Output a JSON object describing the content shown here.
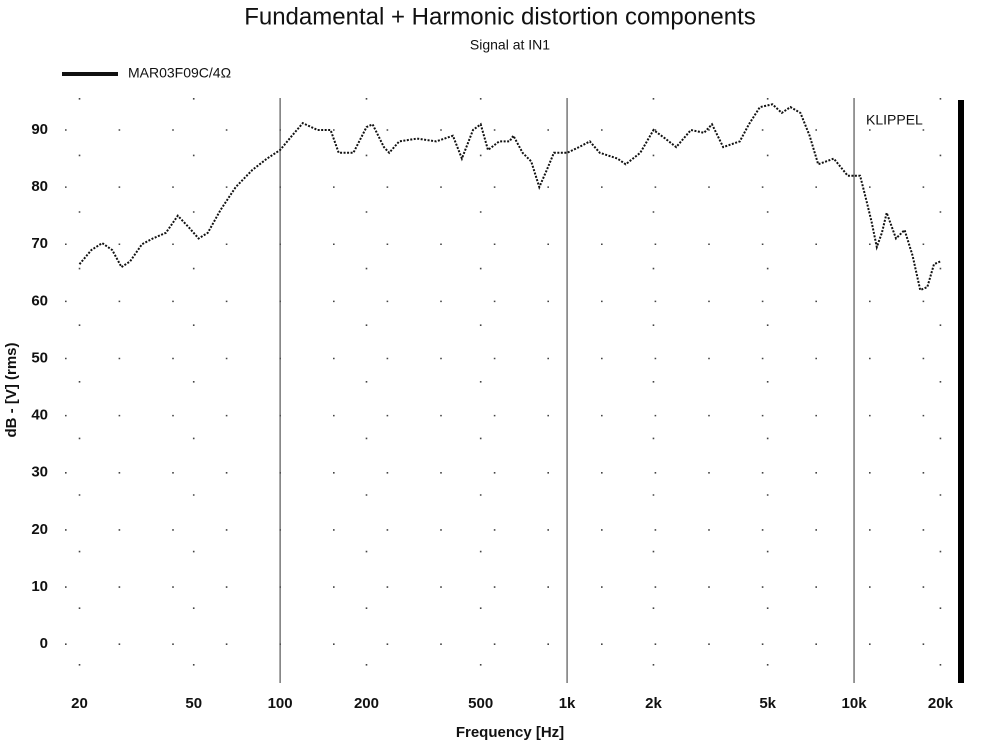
{
  "chart_data": {
    "type": "line",
    "title": "Fundamental + Harmonic distortion components",
    "subtitle": "Signal at IN1",
    "annotation": "KLIPPEL",
    "xlabel": "Frequency [Hz]",
    "ylabel": "dB - [V]  (rms)",
    "xscale": "log",
    "grid": true,
    "legend": "top-left",
    "xlim": [
      17.8,
      23400
    ],
    "ylim": [
      -6.8,
      95.6
    ],
    "xticks": [
      20,
      50,
      100,
      200,
      500,
      {
        "value": 1000,
        "label": "1k"
      },
      {
        "value": 2000,
        "label": "2k"
      },
      {
        "value": 5000,
        "label": "5k"
      },
      {
        "value": 10000,
        "label": "10k"
      },
      {
        "value": 20000,
        "label": "20k"
      }
    ],
    "yticks": [
      0,
      10,
      20,
      30,
      40,
      50,
      60,
      70,
      80,
      90
    ],
    "x": [
      20,
      22,
      24,
      26,
      28,
      30,
      33,
      36,
      40,
      44,
      48,
      52,
      56,
      62,
      70,
      80,
      90,
      100,
      110,
      120,
      135,
      150,
      160,
      180,
      200,
      210,
      230,
      240,
      260,
      300,
      350,
      400,
      430,
      470,
      500,
      530,
      580,
      630,
      650,
      700,
      750,
      800,
      850,
      900,
      1000,
      1100,
      1200,
      1300,
      1500,
      1600,
      1800,
      2000,
      2200,
      2400,
      2700,
      3000,
      3200,
      3500,
      4000,
      4300,
      4700,
      5200,
      5600,
      6000,
      6500,
      7000,
      7500,
      8500,
      9500,
      10000,
      10500,
      11000,
      11500,
      12000,
      12500,
      13000,
      14000,
      15000,
      16000,
      17000,
      18000,
      19000,
      20000
    ],
    "series": [
      {
        "name": "MAR03F09C/4Ω",
        "color": "#111111",
        "values": [
          66.5,
          69,
          70.2,
          69,
          66,
          67,
          70,
          71,
          72,
          75,
          73,
          71,
          72,
          76,
          80,
          83,
          85,
          86.5,
          89,
          91.2,
          90,
          90,
          86,
          86,
          90.5,
          91,
          87,
          86,
          88,
          88.5,
          88,
          89,
          85,
          90,
          91,
          86.5,
          88,
          88,
          89,
          86,
          84.5,
          80,
          83,
          86,
          86,
          87,
          88,
          86,
          85,
          84,
          86,
          90,
          88.5,
          87,
          90,
          89.5,
          91,
          87,
          88,
          91,
          94,
          94.5,
          93,
          94,
          93,
          89,
          84,
          85,
          82,
          82,
          82,
          78,
          74,
          69.5,
          72,
          75.5,
          71,
          72.5,
          68,
          62,
          62.5,
          66.5,
          67
        ]
      }
    ]
  }
}
